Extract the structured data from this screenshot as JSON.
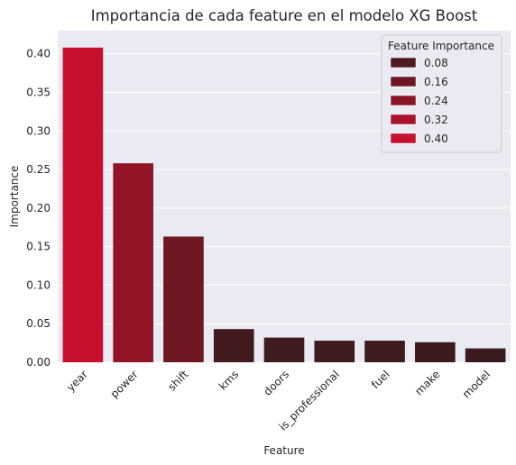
{
  "chart_data": {
    "type": "bar",
    "title": "Importancia de cada feature en el modelo XG Boost",
    "xlabel": "Feature",
    "ylabel": "Importance",
    "categories": [
      "year",
      "power",
      "shift",
      "kms",
      "doors",
      "is_professional",
      "fuel",
      "make",
      "model"
    ],
    "values": [
      0.408,
      0.258,
      0.163,
      0.043,
      0.032,
      0.028,
      0.028,
      0.026,
      0.018
    ],
    "ylim": [
      0,
      0.43
    ],
    "yticks": [
      "0.00",
      "0.05",
      "0.10",
      "0.15",
      "0.20",
      "0.25",
      "0.30",
      "0.35",
      "0.40"
    ],
    "grid": true,
    "legend": {
      "title": "Feature Importance",
      "position": "top-right",
      "entries": [
        "0.08",
        "0.16",
        "0.24",
        "0.32",
        "0.40"
      ]
    },
    "colors": {
      "background": "#eaeaf2",
      "grid": "#ffffff",
      "low": "#3a1b1d",
      "high": "#c8102e"
    }
  }
}
